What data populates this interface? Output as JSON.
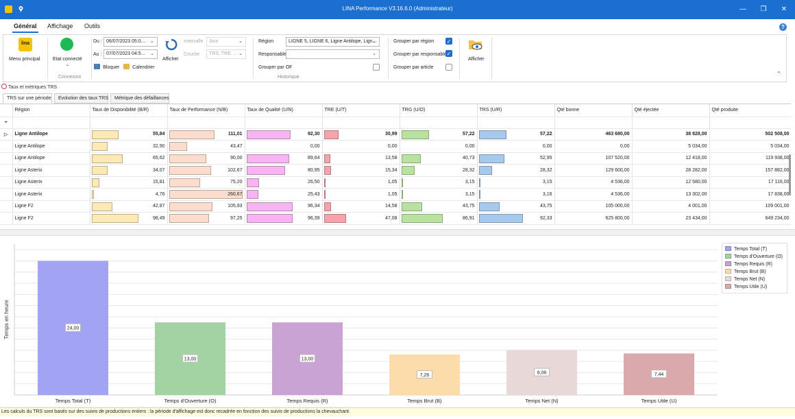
{
  "window": {
    "title": "LINA Performance  V3.16.6.0  (Administrateur)",
    "minimize": "—",
    "maximize": "❐",
    "close": "✕"
  },
  "menu": {
    "tabs": [
      "Général",
      "Affichage",
      "Outils"
    ],
    "active": "Général",
    "help": "?"
  },
  "ribbon": {
    "menu_principal": "Menu principal",
    "connexion": {
      "label": "Etat connecté",
      "group": "Connexion",
      "status_color": "#1db954"
    },
    "du_label": "Du :",
    "du_value": "06/07/2023 05:0...",
    "au_label": "Au :",
    "au_value": "07/07/2023 04:5...",
    "intervalle_label": "Intervalle",
    "intervalle_value": "Jour",
    "courbe_label": "Courbe",
    "courbe_value": "TRS, TRE, ...",
    "bloquer": "Bloquer",
    "calendrier": "Calendrier",
    "afficher_refresh": "Afficher",
    "region_label": "Région",
    "region_value": "LIGNE 5, LIGNE 6, Ligne Antilope, Lign...",
    "responsable_label": "Responsable",
    "responsable_value": "",
    "grouper_of": "Grouper par OF",
    "grouper_region": "Grouper par région",
    "grouper_responsable": "Grouper par responsable",
    "grouper_article": "Grouper par article",
    "historique": "Historique",
    "afficher": "Afficher"
  },
  "breadcrumb": "Taux et métriques TRS",
  "tabs": [
    "TRS sur une période",
    "Evolution des taux TRS",
    "Métrique des défaillances"
  ],
  "grid": {
    "columns": [
      "Région",
      "Taux de Disponibilité (B/R)",
      "Taux de Performance (N/B)",
      "Taux de Qualité (U/N)",
      "TRE (U/T)",
      "TRG (U/O)",
      "TRS (U/R)",
      "Qté bonne",
      "Qté éjectée",
      "Qté produite"
    ],
    "rows": [
      {
        "region": "Ligne Antilope",
        "bold": true,
        "expand": "▷",
        "dispo": "55,84",
        "dispo_pct": 55.84,
        "perf": "111,01",
        "perf_pct": 111.01,
        "qual": "92,30",
        "qual_pct": 92.3,
        "tre": "30,99",
        "tre_pct": 30.99,
        "trg": "57,22",
        "trg_pct": 57.22,
        "trs": "57,22",
        "trs_pct": 57.22,
        "bonne": "463 680,00",
        "ejectee": "38 828,00",
        "produite": "502 508,00"
      },
      {
        "region": "Ligne Antilope",
        "bold": false,
        "expand": "",
        "dispo": "32,90",
        "dispo_pct": 32.9,
        "perf": "43,47",
        "perf_pct": 43.47,
        "qual": "0,00",
        "qual_pct": 0,
        "tre": "0,00",
        "tre_pct": 0,
        "trg": "0,00",
        "trg_pct": 0,
        "trs": "0,00",
        "trs_pct": 0,
        "bonne": "0,00",
        "ejectee": "5 034,00",
        "produite": "5 034,00"
      },
      {
        "region": "Ligne Antilope",
        "bold": false,
        "expand": "",
        "dispo": "65,62",
        "dispo_pct": 65.62,
        "perf": "90,00",
        "perf_pct": 90.0,
        "qual": "89,64",
        "qual_pct": 89.64,
        "tre": "13,58",
        "tre_pct": 13.58,
        "trg": "40,73",
        "trg_pct": 40.73,
        "trs": "52,95",
        "trs_pct": 52.95,
        "bonne": "107 520,00",
        "ejectee": "12 418,00",
        "produite": "119 938,00"
      },
      {
        "region": "Ligne Asterix",
        "bold": false,
        "expand": "",
        "dispo": "34,07",
        "dispo_pct": 34.07,
        "perf": "102,67",
        "perf_pct": 102.67,
        "qual": "80,95",
        "qual_pct": 80.95,
        "tre": "15,34",
        "tre_pct": 15.34,
        "trg": "28,32",
        "trg_pct": 28.32,
        "trs": "28,32",
        "trs_pct": 28.32,
        "bonne": "129 600,00",
        "ejectee": "28 282,00",
        "produite": "157 882,00"
      },
      {
        "region": "Ligne Asterix",
        "bold": false,
        "expand": "",
        "dispo": "15,81",
        "dispo_pct": 15.81,
        "perf": "75,20",
        "perf_pct": 75.2,
        "qual": "26,50",
        "qual_pct": 26.5,
        "tre": "1,05",
        "tre_pct": 1.05,
        "trg": "3,15",
        "trg_pct": 3.15,
        "trs": "3,15",
        "trs_pct": 3.15,
        "bonne": "4 536,00",
        "ejectee": "12 580,00",
        "produite": "17 116,00"
      },
      {
        "region": "Ligne Asterix",
        "bold": false,
        "expand": "",
        "dispo": "4,76",
        "dispo_pct": 4.76,
        "perf": "260,67",
        "perf_pct": 260.67,
        "qual": "25,43",
        "qual_pct": 25.43,
        "tre": "1,05",
        "tre_pct": 1.05,
        "trg": "3,15",
        "trg_pct": 3.15,
        "trs": "3,16",
        "trs_pct": 3.16,
        "bonne": "4 536,00",
        "ejectee": "13 302,00",
        "produite": "17 838,00"
      },
      {
        "region": "Ligne F2",
        "bold": false,
        "expand": "",
        "dispo": "42,87",
        "dispo_pct": 42.87,
        "perf": "105,93",
        "perf_pct": 105.93,
        "qual": "96,34",
        "qual_pct": 96.34,
        "tre": "14,58",
        "tre_pct": 14.58,
        "trg": "43,75",
        "trg_pct": 43.75,
        "trs": "43,75",
        "trs_pct": 43.75,
        "bonne": "105 000,00",
        "ejectee": "4 001,00",
        "produite": "109 001,00"
      },
      {
        "region": "Ligne F2",
        "bold": false,
        "expand": "",
        "dispo": "98,49",
        "dispo_pct": 98.49,
        "perf": "97,25",
        "perf_pct": 97.25,
        "qual": "96,39",
        "qual_pct": 96.39,
        "tre": "47,08",
        "tre_pct": 47.08,
        "trg": "86,91",
        "trg_pct": 86.91,
        "trs": "92,33",
        "trs_pct": 92.33,
        "bonne": "625 800,00",
        "ejectee": "23 434,00",
        "produite": "649 234,00"
      }
    ],
    "bar_colors": {
      "dispo": "#fde9b3",
      "perf": "#fbdccd",
      "qual": "#f7b3f2",
      "tre": "#f7a3ad",
      "trg": "#b9e29f",
      "trs": "#a8c9ee"
    }
  },
  "chart_data": {
    "type": "bar",
    "categories": [
      "Temps Total (T)",
      "Temps d'Ouverture (O)",
      "Temps Requis (R)",
      "Temps Brut (B)",
      "Temps Net (N)",
      "Temps Utile (U)"
    ],
    "values": [
      24.0,
      13.0,
      13.0,
      7.26,
      8.06,
      7.44
    ],
    "value_labels": [
      "24,00",
      "13,00",
      "13,00",
      "7,26",
      "8,06",
      "7,44"
    ],
    "colors": [
      "#a3a3f4",
      "#a3d3a3",
      "#c9a3d3",
      "#fbdcaa",
      "#e8d8d8",
      "#d9a9ab"
    ],
    "ylabel": "Temps en heure",
    "ylim": [
      0,
      27
    ],
    "grid": true,
    "legend": {
      "position": "right",
      "entries": [
        "Temps Total (T)",
        "Temps d'Ouverture (O)",
        "Temps Requis (R)",
        "Temps Brut (B)",
        "Temps Net (N)",
        "Temps Utile (U)"
      ]
    }
  },
  "footer": "Les calculs du TRS sont basés sur des suivis de productions entiers : la période d'affichage est donc recadrée en fonction des suivis de productions la chevauchant."
}
